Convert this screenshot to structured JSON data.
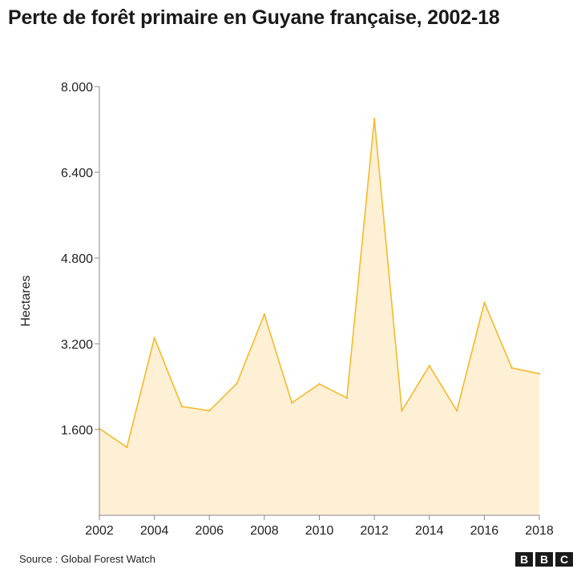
{
  "title": "Perte de forêt primaire en Guyane française, 2002-18",
  "source": "Source : Global Forest Watch",
  "logo": {
    "letters": [
      "B",
      "B",
      "C"
    ]
  },
  "colors": {
    "line": "#f6b92b",
    "fill": "#fdf0d5",
    "axis": "#888888",
    "text": "#222222"
  },
  "chart_data": {
    "type": "area",
    "title": "Perte de forêt primaire en Guyane française, 2002-18",
    "xlabel": "",
    "ylabel": "Hectares",
    "x": [
      2002,
      2003,
      2004,
      2005,
      2006,
      2007,
      2008,
      2009,
      2010,
      2011,
      2012,
      2013,
      2014,
      2015,
      2016,
      2017,
      2018
    ],
    "values": [
      1620,
      1270,
      3310,
      2030,
      1950,
      2460,
      3750,
      2100,
      2450,
      2190,
      7400,
      1950,
      2790,
      1950,
      3970,
      2750,
      2640
    ],
    "ylim": [
      0,
      8000
    ],
    "yticks": [
      1600,
      3200,
      4800,
      6400,
      8000
    ],
    "ytick_labels": [
      "1.600",
      "3.200",
      "4.800",
      "6.400",
      "8.000"
    ],
    "xticks": [
      2002,
      2004,
      2006,
      2008,
      2010,
      2012,
      2014,
      2016,
      2018
    ],
    "xtick_labels": [
      "2002",
      "2004",
      "2006",
      "2008",
      "2010",
      "2012",
      "2014",
      "2016",
      "2018"
    ],
    "grid": false,
    "legend": "none"
  }
}
